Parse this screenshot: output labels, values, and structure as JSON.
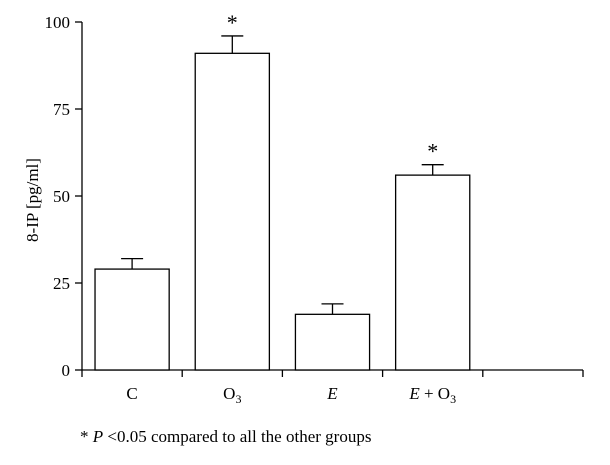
{
  "chart_data": {
    "type": "bar",
    "title": "",
    "xlabel": "",
    "ylabel": "8-IP [pg/ml]",
    "ylim": [
      0,
      100
    ],
    "yticks": [
      0,
      25,
      50,
      75,
      100
    ],
    "categories": [
      {
        "label": "C",
        "italic": false
      },
      {
        "label": "O3",
        "main": "O",
        "sub": "3",
        "italic": false
      },
      {
        "label": "E",
        "italic": true
      },
      {
        "label": "E + O3",
        "main": "E",
        "mid": " + O",
        "sub": "3",
        "italic": true
      }
    ],
    "values": [
      29,
      91,
      16,
      56
    ],
    "errors": [
      3,
      5,
      3,
      3
    ],
    "significant": [
      false,
      true,
      false,
      true
    ],
    "significance_marker": "*",
    "bar_color": "#ffffff",
    "stroke_color": "#000000",
    "grid": false
  },
  "footnote": {
    "star": "*",
    "p": "P",
    "text": " <0.05 compared to all the other groups"
  }
}
